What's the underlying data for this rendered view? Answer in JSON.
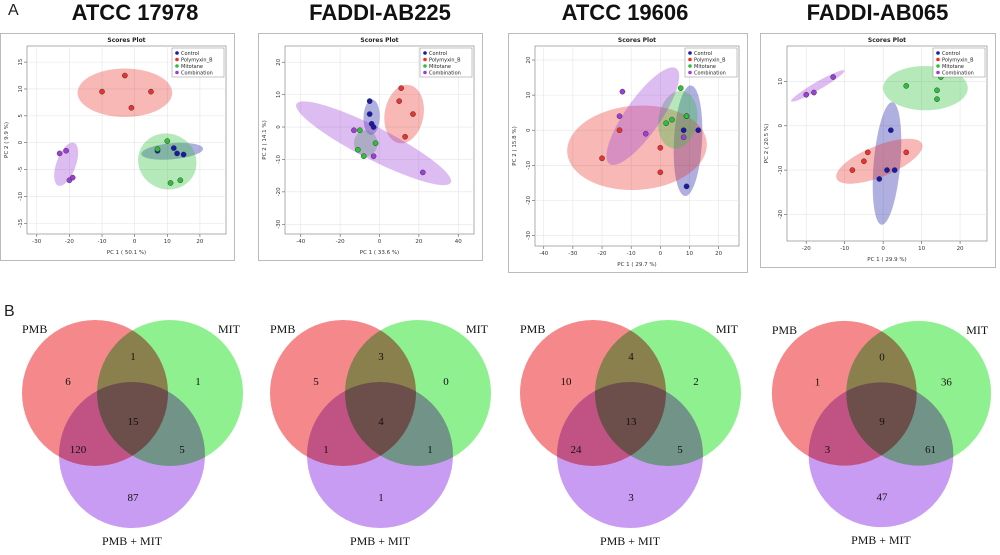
{
  "panel_a_label": "A",
  "panel_b_label": "B",
  "colors": {
    "control": "#1a1aa6",
    "polymyxin": "#e8332f",
    "mitotane": "#2fbf3a",
    "combination": "#9b3fd6",
    "venn_pmb": "#f4888a",
    "venn_mit": "#8ff08f",
    "venn_comb": "#c99cf3"
  },
  "strains": [
    {
      "title": "ATCC 17978",
      "plot_title": "Scores Plot",
      "xlabel": "PC 1 ( 50.1 %)",
      "ylabel": "PC 2 ( 9.9 %)",
      "xticks": [
        "-30",
        "-20",
        "-10",
        "0",
        "10",
        "20"
      ],
      "yticks": [
        "15",
        "10",
        "5",
        "0",
        "-5",
        "-10",
        "-15"
      ],
      "legend": [
        "Control",
        "Polymyxin_B",
        "Mitotane",
        "Combination"
      ],
      "venn": {
        "set_a": "PMB",
        "set_b": "MIT",
        "set_c": "PMB + MIT",
        "only_a": "6",
        "only_b": "1",
        "ab": "1",
        "abc": "15",
        "ac": "120",
        "bc": "5",
        "only_c": "87"
      }
    },
    {
      "title": "FADDI-AB225",
      "plot_title": "Scores Plot",
      "xlabel": "PC 1 ( 33.6 %)",
      "ylabel": "PC 2 ( 14.1 %)",
      "xticks": [
        "-40",
        "-20",
        "0",
        "20",
        "40"
      ],
      "yticks": [
        "20",
        "10",
        "0",
        "-10",
        "-20",
        "-30"
      ],
      "legend": [
        "Control",
        "Polymyxin_B",
        "Mitotane",
        "Combination"
      ],
      "venn": {
        "set_a": "PMB",
        "set_b": "MIT",
        "set_c": "PMB + MIT",
        "only_a": "5",
        "only_b": "0",
        "ab": "3",
        "abc": "4",
        "ac": "1",
        "bc": "1",
        "only_c": "1"
      }
    },
    {
      "title": "ATCC 19606",
      "plot_title": "Scores Plot",
      "xlabel": "PC 1 ( 29.7 %)",
      "ylabel": "PC 2 ( 15.8 %)",
      "xticks": [
        "-40",
        "-30",
        "-20",
        "-10",
        "0",
        "10",
        "20"
      ],
      "yticks": [
        "20",
        "10",
        "0",
        "-10",
        "-20",
        "-30"
      ],
      "legend": [
        "Control",
        "Polymyxin_B",
        "Mitotane",
        "Combination"
      ],
      "venn": {
        "set_a": "PMB",
        "set_b": "MIT",
        "set_c": "PMB + MIT",
        "only_a": "10",
        "only_b": "2",
        "ab": "4",
        "abc": "13",
        "ac": "24",
        "bc": "5",
        "only_c": "3"
      }
    },
    {
      "title": "FADDI-AB065",
      "plot_title": "Scores Plot",
      "xlabel": "PC 1 ( 29.9 %)",
      "ylabel": "PC 2 ( 20.5 %)",
      "xticks": [
        "-20",
        "-10",
        "0",
        "10",
        "20"
      ],
      "yticks": [
        "10",
        "0",
        "-10",
        "-20"
      ],
      "legend": [
        "Control",
        "Polymyxin_B",
        "Mitotane",
        "Combination"
      ],
      "venn": {
        "set_a": "PMB",
        "set_b": "MIT",
        "set_c": "PMB + MIT",
        "only_a": "1",
        "only_b": "36",
        "ab": "0",
        "abc": "9",
        "ac": "3",
        "bc": "61",
        "only_c": "47"
      }
    }
  ],
  "chart_data": [
    {
      "type": "scatter",
      "title": "Scores Plot",
      "xlabel": "PC 1 ( 50.1 %)",
      "ylabel": "PC 2 ( 9.9 %)",
      "xlim": [
        -33,
        28
      ],
      "ylim": [
        -17,
        18
      ],
      "series": [
        {
          "name": "Control",
          "key": "control",
          "points": [
            [
              7,
              -1.5
            ],
            [
              12,
              -1
            ],
            [
              13,
              -2
            ],
            [
              15,
              -2.2
            ]
          ],
          "ellipse": {
            "cx": 11.5,
            "cy": -1.6,
            "rx": 9.5,
            "ry": 1.5,
            "angle": -5
          }
        },
        {
          "name": "Polymyxin_B",
          "key": "polymyxin",
          "points": [
            [
              -10,
              9.5
            ],
            [
              -3,
              12.5
            ],
            [
              -1,
              6.5
            ],
            [
              5,
              9.5
            ]
          ],
          "ellipse": {
            "cx": -3,
            "cy": 9.3,
            "rx": 14.5,
            "ry": 4.5,
            "angle": 0
          }
        },
        {
          "name": "Mitotane",
          "key": "mitotane",
          "points": [
            [
              7,
              -1.2
            ],
            [
              10,
              0.3
            ],
            [
              11,
              -7.5
            ],
            [
              14,
              -7
            ]
          ],
          "ellipse": {
            "cx": 10,
            "cy": -3.5,
            "rx": 8.5,
            "ry": 5.5,
            "angle": -65
          }
        },
        {
          "name": "Combination",
          "key": "combination",
          "points": [
            [
              -23,
              -2
            ],
            [
              -21,
              -1.5
            ],
            [
              -20,
              -7
            ],
            [
              -19,
              -6.5
            ]
          ],
          "ellipse": {
            "cx": -21,
            "cy": -4,
            "rx": 7,
            "ry": 1.8,
            "angle": -70
          }
        }
      ]
    },
    {
      "type": "scatter",
      "title": "Scores Plot",
      "xlabel": "PC 1 ( 33.6 %)",
      "ylabel": "PC 2 ( 14.1 %)",
      "xlim": [
        -48,
        48
      ],
      "ylim": [
        -33,
        25
      ],
      "series": [
        {
          "name": "Control",
          "key": "control",
          "points": [
            [
              -5,
              8
            ],
            [
              -5,
              4
            ],
            [
              -4,
              1
            ],
            [
              -3,
              0
            ]
          ],
          "ellipse": {
            "cx": -4,
            "cy": 3,
            "rx": 9,
            "ry": 2.5,
            "angle": -88
          }
        },
        {
          "name": "Polymyxin_B",
          "key": "polymyxin",
          "points": [
            [
              11,
              12
            ],
            [
              10,
              8
            ],
            [
              17,
              4
            ],
            [
              13,
              -3
            ]
          ],
          "ellipse": {
            "cx": 12.5,
            "cy": 4,
            "rx": 15,
            "ry": 6,
            "angle": -80
          }
        },
        {
          "name": "Mitotane",
          "key": "mitotane",
          "points": [
            [
              -10,
              -1
            ],
            [
              -11,
              -7
            ],
            [
              -2,
              -5
            ],
            [
              -8,
              -9
            ]
          ],
          "ellipse": {
            "cx": -7,
            "cy": -5,
            "rx": 6,
            "ry": 4,
            "angle": 0
          }
        },
        {
          "name": "Combination",
          "key": "combination",
          "points": [
            [
              -13,
              -1
            ],
            [
              -3,
              -9
            ],
            [
              22,
              -14
            ]
          ],
          "ellipse": {
            "cx": -3,
            "cy": -5,
            "rx": 44,
            "ry": 5,
            "angle": 27
          }
        }
      ]
    },
    {
      "type": "scatter",
      "title": "Scores Plot",
      "xlabel": "PC 1 ( 29.7 %)",
      "ylabel": "PC 2 ( 15.8 %)",
      "xlim": [
        -43,
        27
      ],
      "ylim": [
        -33,
        24
      ],
      "series": [
        {
          "name": "Control",
          "key": "control",
          "points": [
            [
              9,
              4
            ],
            [
              13,
              0
            ],
            [
              8,
              0
            ],
            [
              9,
              -16
            ]
          ],
          "ellipse": {
            "cx": 9.5,
            "cy": -3,
            "rx": 19,
            "ry": 4,
            "angle": -87
          }
        },
        {
          "name": "Polymyxin_B",
          "key": "polymyxin",
          "points": [
            [
              -20,
              -8
            ],
            [
              -14,
              0
            ],
            [
              0,
              -5
            ],
            [
              0,
              -12
            ]
          ],
          "ellipse": {
            "cx": -8,
            "cy": -5,
            "rx": 24,
            "ry": 12,
            "angle": -4
          }
        },
        {
          "name": "Mitotane",
          "key": "mitotane",
          "points": [
            [
              7,
              12
            ],
            [
              4,
              3
            ],
            [
              9,
              4
            ],
            [
              2,
              2
            ]
          ],
          "ellipse": {
            "cx": 6,
            "cy": 3,
            "rx": 10,
            "ry": 5.5,
            "angle": -80
          }
        },
        {
          "name": "Combination",
          "key": "combination",
          "points": [
            [
              -13,
              11
            ],
            [
              -5,
              -1
            ],
            [
              -14,
              4
            ],
            [
              8,
              -2
            ]
          ],
          "ellipse": {
            "cx": -6,
            "cy": 4,
            "rx": 20,
            "ry": 5,
            "angle": -55
          }
        }
      ]
    },
    {
      "type": "scatter",
      "title": "Scores Plot",
      "xlabel": "PC 1 ( 29.9 %)",
      "ylabel": "PC 2 ( 20.5 %)",
      "xlim": [
        -25,
        27
      ],
      "ylim": [
        -26,
        18
      ],
      "series": [
        {
          "name": "Control",
          "key": "control",
          "points": [
            [
              2,
              -1
            ],
            [
              1,
              -10
            ],
            [
              -1,
              -12
            ],
            [
              3,
              -10
            ]
          ],
          "ellipse": {
            "cx": 1,
            "cy": -8.5,
            "rx": 16,
            "ry": 3,
            "angle": -85
          }
        },
        {
          "name": "Polymyxin_B",
          "key": "polymyxin",
          "points": [
            [
              -4,
              -6
            ],
            [
              -5,
              -8
            ],
            [
              6,
              -6
            ],
            [
              -8,
              -10
            ]
          ],
          "ellipse": {
            "cx": -1,
            "cy": -8,
            "rx": 12,
            "ry": 3.5,
            "angle": -22
          }
        },
        {
          "name": "Mitotane",
          "key": "mitotane",
          "points": [
            [
              6,
              9
            ],
            [
              15,
              11
            ],
            [
              14,
              8
            ],
            [
              14,
              6
            ]
          ],
          "ellipse": {
            "cx": 11,
            "cy": 8.5,
            "rx": 11,
            "ry": 5,
            "angle": 0
          }
        },
        {
          "name": "Combination",
          "key": "combination",
          "points": [
            [
              -20,
              7
            ],
            [
              -18,
              7.5
            ],
            [
              -13,
              11
            ]
          ],
          "ellipse": {
            "cx": -17,
            "cy": 9,
            "rx": 8,
            "ry": 0.9,
            "angle": -30
          }
        }
      ]
    }
  ]
}
